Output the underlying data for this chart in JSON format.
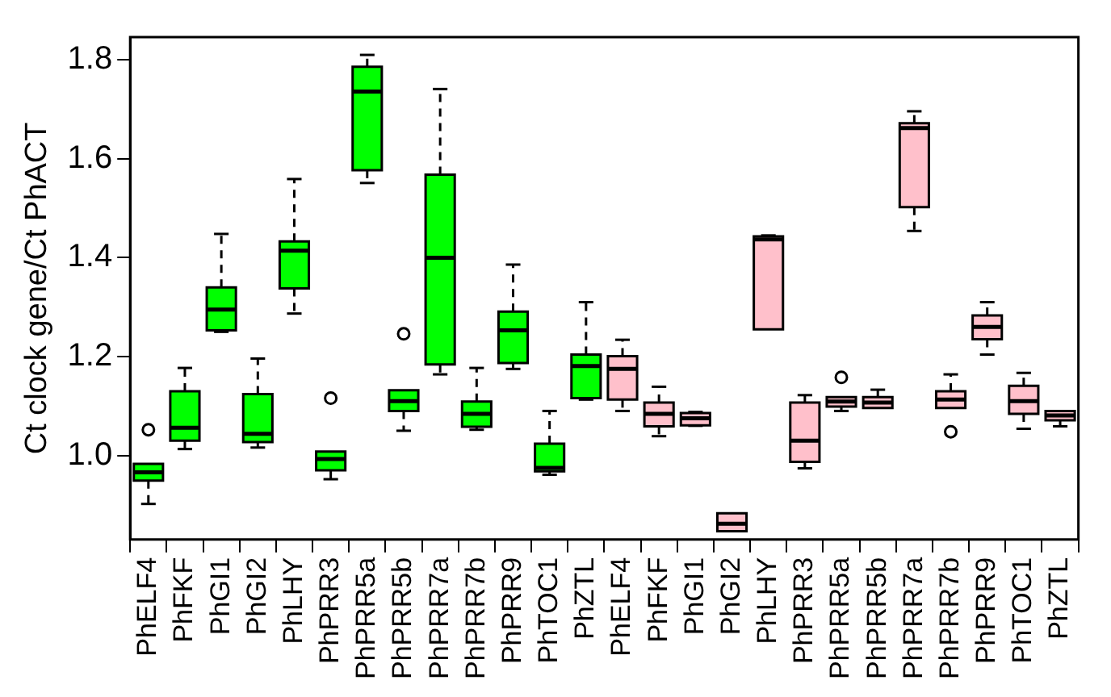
{
  "chart_data": {
    "type": "box",
    "ylabel": "Ct clock gene/Ct PhACT",
    "categories": [
      "PhELF4",
      "PhFKF",
      "PhGI1",
      "PhGI2",
      "PhLHY",
      "PhPRR3",
      "PhPRR5a",
      "PhPRR5b",
      "PhPRR7a",
      "PhPRR7b",
      "PhPRR9",
      "PhTOC1",
      "PhZTL",
      "PhELF4",
      "PhFKF",
      "PhGI1",
      "PhGI2",
      "PhLHY",
      "PhPRR3",
      "PhPRR5a",
      "PhPRR5b",
      "PhPRR7a",
      "PhPRR7b",
      "PhPRR9",
      "PhTOC1",
      "PhZTL"
    ],
    "colors": [
      "#00ff00",
      "#00ff00",
      "#00ff00",
      "#00ff00",
      "#00ff00",
      "#00ff00",
      "#00ff00",
      "#00ff00",
      "#00ff00",
      "#00ff00",
      "#00ff00",
      "#00ff00",
      "#00ff00",
      "#ffc0cb",
      "#ffc0cb",
      "#ffc0cb",
      "#ffc0cb",
      "#ffc0cb",
      "#ffc0cb",
      "#ffc0cb",
      "#ffc0cb",
      "#ffc0cb",
      "#ffc0cb",
      "#ffc0cb",
      "#ffc0cb",
      "#ffc0cb"
    ],
    "boxes": [
      {
        "low": 0.902,
        "q1": 0.949,
        "median": 0.966,
        "q3": 0.983,
        "high": 0.983,
        "outliers": [
          1.052
        ]
      },
      {
        "low": 1.013,
        "q1": 1.03,
        "median": 1.056,
        "q3": 1.13,
        "high": 1.177
      },
      {
        "low": 1.25,
        "q1": 1.253,
        "median": 1.295,
        "q3": 1.34,
        "high": 1.448
      },
      {
        "low": 1.016,
        "q1": 1.027,
        "median": 1.044,
        "q3": 1.124,
        "high": 1.196
      },
      {
        "low": 1.287,
        "q1": 1.338,
        "median": 1.414,
        "q3": 1.433,
        "high": 1.559
      },
      {
        "low": 0.952,
        "q1": 0.97,
        "median": 0.993,
        "q3": 1.008,
        "high": 1.008,
        "outliers": [
          1.116
        ]
      },
      {
        "low": 1.551,
        "q1": 1.577,
        "median": 1.736,
        "q3": 1.786,
        "high": 1.81
      },
      {
        "low": 1.05,
        "q1": 1.09,
        "median": 1.11,
        "q3": 1.132,
        "high": 1.132,
        "outliers": [
          1.246
        ]
      },
      {
        "low": 1.164,
        "q1": 1.184,
        "median": 1.4,
        "q3": 1.568,
        "high": 1.741
      },
      {
        "low": 1.052,
        "q1": 1.058,
        "median": 1.084,
        "q3": 1.109,
        "high": 1.177
      },
      {
        "low": 1.175,
        "q1": 1.187,
        "median": 1.253,
        "q3": 1.291,
        "high": 1.386
      },
      {
        "low": 0.961,
        "q1": 0.968,
        "median": 0.975,
        "q3": 1.024,
        "high": 1.09
      },
      {
        "low": 1.113,
        "q1": 1.116,
        "median": 1.181,
        "q3": 1.204,
        "high": 1.31
      },
      {
        "low": 1.09,
        "q1": 1.113,
        "median": 1.175,
        "q3": 1.201,
        "high": 1.234
      },
      {
        "low": 1.039,
        "q1": 1.059,
        "median": 1.084,
        "q3": 1.107,
        "high": 1.139
      },
      {
        "low": 1.06,
        "q1": 1.061,
        "median": 1.075,
        "q3": 1.086,
        "high": 1.088
      },
      {
        "low": 0.847,
        "q1": 0.847,
        "median": 0.862,
        "q3": 0.883,
        "high": 0.883
      },
      {
        "low": 1.255,
        "q1": 1.255,
        "median": 1.437,
        "q3": 1.443,
        "high": 1.445
      },
      {
        "low": 0.974,
        "q1": 0.987,
        "median": 1.03,
        "q3": 1.107,
        "high": 1.122
      },
      {
        "low": 1.09,
        "q1": 1.099,
        "median": 1.109,
        "q3": 1.118,
        "high": 1.118,
        "outliers": [
          1.158
        ]
      },
      {
        "low": 1.096,
        "q1": 1.096,
        "median": 1.107,
        "q3": 1.118,
        "high": 1.133
      },
      {
        "low": 1.454,
        "q1": 1.502,
        "median": 1.662,
        "q3": 1.672,
        "high": 1.696
      },
      {
        "low": 1.096,
        "q1": 1.096,
        "median": 1.113,
        "q3": 1.13,
        "high": 1.164,
        "outliers": [
          1.048
        ]
      },
      {
        "low": 1.204,
        "q1": 1.235,
        "median": 1.26,
        "q3": 1.283,
        "high": 1.31
      },
      {
        "low": 1.054,
        "q1": 1.084,
        "median": 1.11,
        "q3": 1.141,
        "high": 1.167
      },
      {
        "low": 1.059,
        "q1": 1.071,
        "median": 1.081,
        "q3": 1.09,
        "high": 1.09
      }
    ],
    "ylim": [
      0.83,
      1.846
    ],
    "yticks": [
      {
        "value": 1,
        "label": "1.0"
      },
      {
        "value": 1.2,
        "label": "1.2"
      },
      {
        "value": 1.4,
        "label": "1.4"
      },
      {
        "value": 1.6,
        "label": "1.6"
      },
      {
        "value": 1.8,
        "label": "1.8"
      }
    ]
  }
}
